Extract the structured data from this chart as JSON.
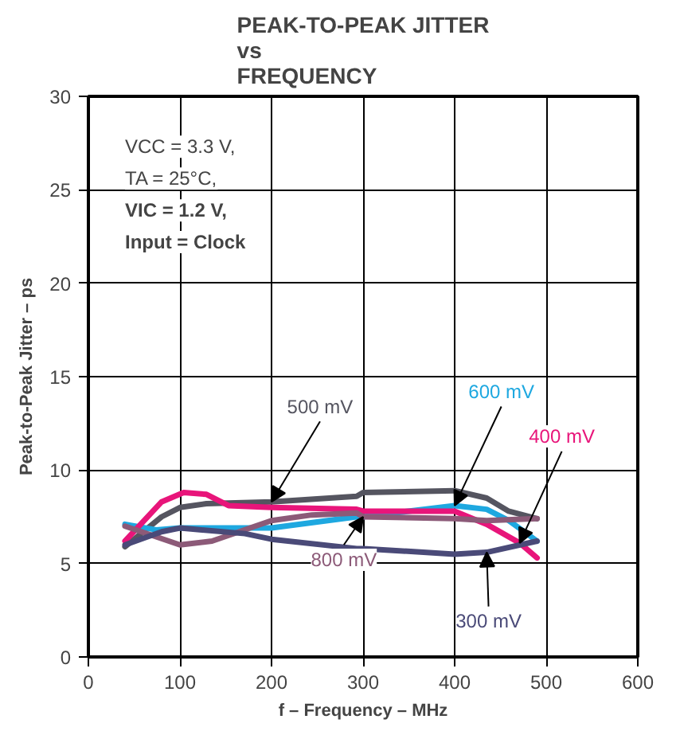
{
  "chart_data": {
    "type": "line",
    "title": "PEAK-TO-PEAK JITTER\nvs\nFREQUENCY",
    "xlabel": "f – Frequency – MHz",
    "ylabel": "Peak-to-Peak Jitter – ps",
    "xlim": [
      0,
      600
    ],
    "ylim": [
      0,
      30
    ],
    "xticks": [
      0,
      100,
      200,
      300,
      400,
      500,
      600
    ],
    "yticks": [
      0,
      5,
      10,
      15,
      20,
      25,
      30
    ],
    "grid": true,
    "marker": "none",
    "line_style": "solid",
    "annotations": [
      "VCC = 3.3 V,",
      "TA = 25°C,",
      "VIC = 1.2 V,",
      "Input = Clock"
    ],
    "series": [
      {
        "name": "500 mV",
        "color": "#555560",
        "x": [
          40,
          80,
          100,
          129,
          200,
          293,
          300,
          400,
          435,
          459,
          490
        ],
        "values": [
          5.9,
          7.5,
          8.0,
          8.2,
          8.3,
          8.6,
          8.8,
          8.9,
          8.5,
          7.8,
          7.4
        ]
      },
      {
        "name": "600 mV",
        "color": "#1ea8e0",
        "x": [
          40,
          74,
          100,
          200,
          293,
          300,
          400,
          435,
          459,
          490
        ],
        "values": [
          7.1,
          6.8,
          6.9,
          6.9,
          7.5,
          7.5,
          8.1,
          7.9,
          7.3,
          6.2
        ]
      },
      {
        "name": "400 mV",
        "color": "#e8157a",
        "x": [
          40,
          80,
          104,
          129,
          153,
          200,
          293,
          300,
          400,
          435,
          471,
          490
        ],
        "values": [
          6.2,
          8.3,
          8.8,
          8.7,
          8.1,
          8.0,
          7.9,
          7.8,
          7.8,
          7.1,
          6.1,
          5.3
        ]
      },
      {
        "name": "800 mV",
        "color": "#8c5a78",
        "x": [
          40,
          100,
          135,
          200,
          244,
          293,
          300,
          400,
          435,
          490
        ],
        "values": [
          7.0,
          6.0,
          6.2,
          7.3,
          7.6,
          7.7,
          7.5,
          7.4,
          7.3,
          7.4
        ]
      },
      {
        "name": "300 mV",
        "color": "#4a4a78",
        "x": [
          40,
          80,
          100,
          171,
          200,
          293,
          300,
          400,
          435,
          490
        ],
        "values": [
          6.0,
          6.7,
          6.9,
          6.6,
          6.3,
          5.8,
          5.8,
          5.5,
          5.6,
          6.2
        ]
      }
    ]
  }
}
